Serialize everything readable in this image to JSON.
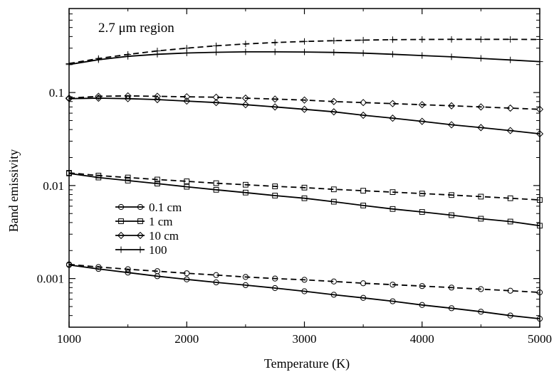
{
  "chart_data": {
    "type": "line",
    "title": "",
    "annotation": "2.7 μm region",
    "xlabel": "Temperature (K)",
    "ylabel": "Band emissivity",
    "xlim": [
      1000,
      5000
    ],
    "ylim": [
      0.0003,
      0.8
    ],
    "yscale": "log",
    "grid": false,
    "legend_position": "center-left",
    "x_ticks": [
      1000,
      2000,
      3000,
      4000,
      5000
    ],
    "x_tick_labels": [
      "1000",
      "2000",
      "3000",
      "4000",
      "5000"
    ],
    "y_ticks": [
      0.001,
      0.01,
      0.1
    ],
    "y_tick_labels": [
      "0.001",
      "0.01",
      "0.1"
    ],
    "legend": [
      {
        "label": "0.1 cm",
        "marker": "circle"
      },
      {
        "label": "1 cm",
        "marker": "square"
      },
      {
        "label": "10 cm",
        "marker": "diamond"
      },
      {
        "label": "100",
        "marker": "plus"
      }
    ],
    "series": [
      {
        "path_length": "0.1 cm",
        "marker": "circle",
        "dash": "solid",
        "x": [
          1000,
          1250,
          1500,
          1750,
          2000,
          2250,
          2500,
          2750,
          3000,
          3250,
          3500,
          3750,
          4000,
          4250,
          4500,
          4750,
          5000
        ],
        "y": [
          0.0014,
          0.00127,
          0.00116,
          0.00106,
          0.00098,
          0.00091,
          0.00085,
          0.00079,
          0.00073,
          0.00067,
          0.00062,
          0.00057,
          0.00052,
          0.00048,
          0.00044,
          0.0004,
          0.00037
        ]
      },
      {
        "path_length": "0.1 cm",
        "marker": "circle",
        "dash": "dashed",
        "x": [
          1000,
          1250,
          1500,
          1750,
          2000,
          2250,
          2500,
          2750,
          3000,
          3250,
          3500,
          3750,
          4000,
          4250,
          4500,
          4750,
          5000
        ],
        "y": [
          0.00142,
          0.00133,
          0.00126,
          0.0012,
          0.00114,
          0.00109,
          0.00104,
          0.001,
          0.00097,
          0.00093,
          0.00089,
          0.00086,
          0.00083,
          0.0008,
          0.00077,
          0.00074,
          0.00071
        ]
      },
      {
        "path_length": "1 cm",
        "marker": "square",
        "dash": "solid",
        "x": [
          1000,
          1250,
          1500,
          1750,
          2000,
          2250,
          2500,
          2750,
          3000,
          3250,
          3500,
          3750,
          4000,
          4250,
          4500,
          4750,
          5000
        ],
        "y": [
          0.0135,
          0.0122,
          0.0113,
          0.0105,
          0.0097,
          0.009,
          0.0084,
          0.0078,
          0.0073,
          0.0067,
          0.0061,
          0.0056,
          0.0052,
          0.0048,
          0.0044,
          0.0041,
          0.0037
        ]
      },
      {
        "path_length": "1 cm",
        "marker": "square",
        "dash": "dashed",
        "x": [
          1000,
          1250,
          1500,
          1750,
          2000,
          2250,
          2500,
          2750,
          3000,
          3250,
          3500,
          3750,
          4000,
          4250,
          4500,
          4750,
          5000
        ],
        "y": [
          0.0137,
          0.0128,
          0.0122,
          0.0116,
          0.0111,
          0.0106,
          0.0102,
          0.0098,
          0.0095,
          0.0091,
          0.0088,
          0.0085,
          0.0082,
          0.0079,
          0.0076,
          0.0073,
          0.007
        ]
      },
      {
        "path_length": "10 cm",
        "marker": "diamond",
        "dash": "solid",
        "x": [
          1000,
          1250,
          1500,
          1750,
          2000,
          2250,
          2500,
          2750,
          3000,
          3250,
          3500,
          3750,
          4000,
          4250,
          4500,
          4750,
          5000
        ],
        "y": [
          0.086,
          0.087,
          0.086,
          0.084,
          0.081,
          0.078,
          0.074,
          0.07,
          0.066,
          0.062,
          0.057,
          0.053,
          0.049,
          0.045,
          0.042,
          0.039,
          0.036
        ]
      },
      {
        "path_length": "10 cm",
        "marker": "diamond",
        "dash": "dashed",
        "x": [
          1000,
          1250,
          1500,
          1750,
          2000,
          2250,
          2500,
          2750,
          3000,
          3250,
          3500,
          3750,
          4000,
          4250,
          4500,
          4750,
          5000
        ],
        "y": [
          0.087,
          0.091,
          0.092,
          0.091,
          0.09,
          0.089,
          0.087,
          0.085,
          0.083,
          0.08,
          0.078,
          0.076,
          0.074,
          0.072,
          0.07,
          0.068,
          0.066
        ]
      },
      {
        "path_length": "100",
        "marker": "plus",
        "dash": "solid",
        "x": [
          1000,
          1250,
          1500,
          1750,
          2000,
          2250,
          2500,
          2750,
          3000,
          3250,
          3500,
          3750,
          4000,
          4250,
          4500,
          4750,
          5000
        ],
        "y": [
          0.2,
          0.225,
          0.245,
          0.258,
          0.266,
          0.271,
          0.274,
          0.274,
          0.273,
          0.27,
          0.265,
          0.258,
          0.25,
          0.242,
          0.233,
          0.224,
          0.215
        ]
      },
      {
        "path_length": "100",
        "marker": "plus",
        "dash": "dashed",
        "x": [
          1000,
          1250,
          1500,
          1750,
          2000,
          2250,
          2500,
          2750,
          3000,
          3250,
          3500,
          3750,
          4000,
          4250,
          4500,
          4750,
          5000
        ],
        "y": [
          0.205,
          0.232,
          0.257,
          0.28,
          0.3,
          0.318,
          0.333,
          0.345,
          0.354,
          0.361,
          0.366,
          0.37,
          0.372,
          0.373,
          0.373,
          0.373,
          0.372
        ]
      }
    ]
  }
}
